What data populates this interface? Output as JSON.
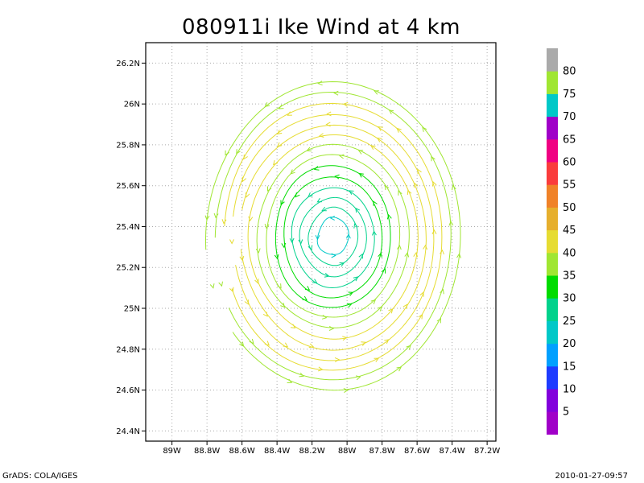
{
  "chart_data": {
    "type": "streamline",
    "title": "080911i Ike Wind at 4 km",
    "x_ticks": [
      "89W",
      "88.8W",
      "88.6W",
      "88.4W",
      "88.2W",
      "88W",
      "87.8W",
      "87.6W",
      "87.4W",
      "87.2W"
    ],
    "x_values": [
      -89.0,
      -88.8,
      -88.6,
      -88.4,
      -88.2,
      -88.0,
      -87.8,
      -87.6,
      -87.4,
      -87.2
    ],
    "y_ticks": [
      "24.4N",
      "24.6N",
      "24.8N",
      "25N",
      "25.2N",
      "25.4N",
      "25.6N",
      "25.8N",
      "26N",
      "26.2N"
    ],
    "y_values": [
      24.4,
      24.6,
      24.8,
      25.0,
      25.2,
      25.4,
      25.6,
      25.8,
      26.0,
      26.2
    ],
    "xlim": [
      -89.15,
      -87.15
    ],
    "ylim": [
      24.35,
      26.3
    ],
    "grid": true,
    "center": {
      "lon": -88.08,
      "lat": 25.35
    },
    "rings": [
      {
        "radius_deg": 0.09,
        "speed": 24
      },
      {
        "radius_deg": 0.14,
        "speed": 26
      },
      {
        "radius_deg": 0.19,
        "speed": 27
      },
      {
        "radius_deg": 0.24,
        "speed": 28
      },
      {
        "radius_deg": 0.29,
        "speed": 30
      },
      {
        "radius_deg": 0.34,
        "speed": 33
      },
      {
        "radius_deg": 0.39,
        "speed": 36
      },
      {
        "radius_deg": 0.44,
        "speed": 39
      },
      {
        "radius_deg": 0.49,
        "speed": 41
      },
      {
        "radius_deg": 0.54,
        "speed": 43
      },
      {
        "radius_deg": 0.59,
        "speed": 42
      },
      {
        "radius_deg": 0.64,
        "speed": 40
      },
      {
        "radius_deg": 0.69,
        "speed": 38
      },
      {
        "radius_deg": 0.74,
        "speed": 37
      }
    ],
    "colorbar": {
      "labels": [
        "5",
        "10",
        "15",
        "20",
        "25",
        "30",
        "35",
        "40",
        "45",
        "50",
        "55",
        "60",
        "65",
        "70",
        "75",
        "80"
      ],
      "colors": [
        "#a000c8",
        "#8200dc",
        "#1e3cff",
        "#00a0ff",
        "#00c8c8",
        "#00d28c",
        "#00dc00",
        "#a0e632",
        "#e6dc32",
        "#e6af2d",
        "#f08228",
        "#fa3c3c",
        "#f00082",
        "#a000c8",
        "#00c8c8",
        "#a0e632",
        "#aaaaaa"
      ]
    }
  },
  "footer": {
    "left": "GrADS: COLA/IGES",
    "right": "2010-01-27-09:57"
  }
}
